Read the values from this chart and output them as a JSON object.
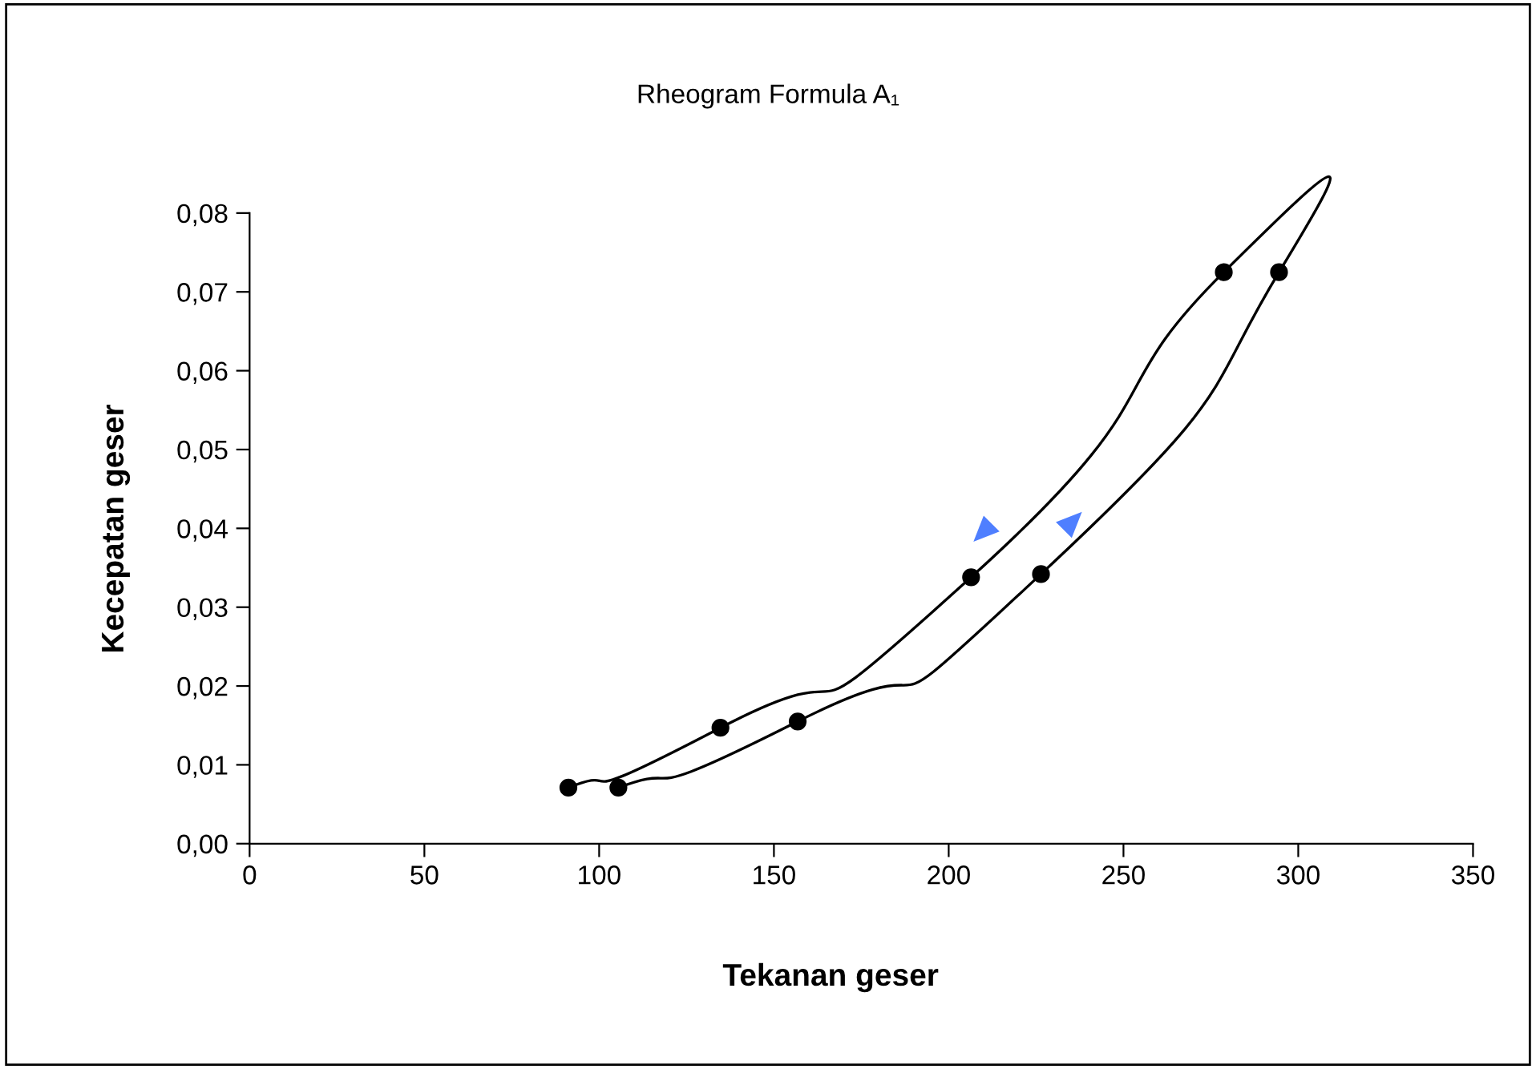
{
  "chart_data": {
    "type": "line",
    "title": "Rheogram Formula A₁",
    "xlabel": "Tekanan geser",
    "ylabel": "Kecepatan geser",
    "series": [
      {
        "color": "#000000",
        "x": [
          105.5,
          156.8,
          226.4,
          294.5,
          278.7,
          206.4,
          134.7,
          91.2
        ],
        "values": [
          0.0071,
          0.0155,
          0.0342,
          0.0725,
          0.0725,
          0.0338,
          0.0147,
          0.0071
        ]
      }
    ],
    "xlim": [
      0,
      350
    ],
    "xticks": [
      0,
      50,
      100,
      150,
      200,
      250,
      300,
      350
    ],
    "ylim": [
      0,
      0.08
    ],
    "yticks": [
      {
        "value": 0,
        "label": "0,00"
      },
      {
        "value": 0.01,
        "label": "0,01"
      },
      {
        "value": 0.02,
        "label": "0,02"
      },
      {
        "value": 0.03,
        "label": "0,03"
      },
      {
        "value": 0.04,
        "label": "0,04"
      },
      {
        "value": 0.05,
        "label": "0,05"
      },
      {
        "value": 0.06,
        "label": "0,06"
      },
      {
        "value": 0.07,
        "label": "0,07"
      },
      {
        "value": 0.08,
        "label": "0,08"
      }
    ],
    "marker": "circle",
    "line_style": "solid",
    "grid": false,
    "legend": false
  }
}
